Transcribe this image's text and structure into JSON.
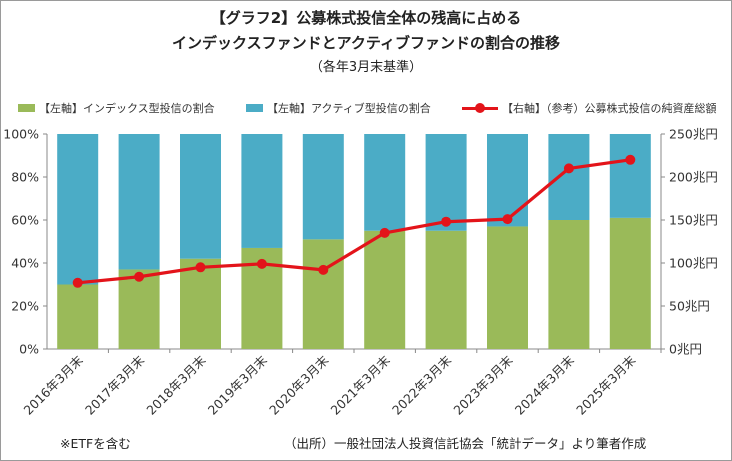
{
  "chart_data": {
    "type": "bar",
    "stacked": true,
    "title": "【グラフ2】公募株式投信全体の残高に占める",
    "title2": "インデックスファンドとアクティブファンドの割合の推移",
    "subtitle": "（各年3月末基準）",
    "categories": [
      "2016年3月末",
      "2017年3月末",
      "2018年3月末",
      "2019年3月末",
      "2020年3月末",
      "2021年3月末",
      "2022年3月末",
      "2023年3月末",
      "2024年3月末",
      "2025年3月末"
    ],
    "series": [
      {
        "name": "【左軸】インデックス型投信の割合",
        "axis": "left",
        "kind": "bar",
        "color": "#9aba59",
        "values": [
          30,
          37,
          42,
          47,
          51,
          55,
          55,
          57,
          60,
          61
        ]
      },
      {
        "name": "【左軸】アクティブ型投信の割合",
        "axis": "left",
        "kind": "bar",
        "color": "#4bacc6",
        "values": [
          70,
          63,
          58,
          53,
          49,
          45,
          45,
          43,
          40,
          39
        ]
      },
      {
        "name": "【右軸】（参考）公募株式投信の純資産総額",
        "axis": "right",
        "kind": "line",
        "color": "#e3141a",
        "values": [
          77,
          84,
          95,
          99,
          92,
          135,
          148,
          151,
          210,
          220
        ]
      }
    ],
    "y_left": {
      "ticks": [
        "0%",
        "20%",
        "40%",
        "60%",
        "80%",
        "100%"
      ],
      "ylim": [
        0,
        100
      ]
    },
    "y_right": {
      "ticks": [
        "0兆円",
        "50兆円",
        "100兆円",
        "150兆円",
        "200兆円",
        "250兆円"
      ],
      "ylim": [
        0,
        250
      ]
    },
    "grid": false,
    "legend_position": "top"
  },
  "footnotes": {
    "left": "※ETFを含む",
    "right": "（出所）一般社団法人投資信託協会「統計データ」より筆者作成"
  }
}
